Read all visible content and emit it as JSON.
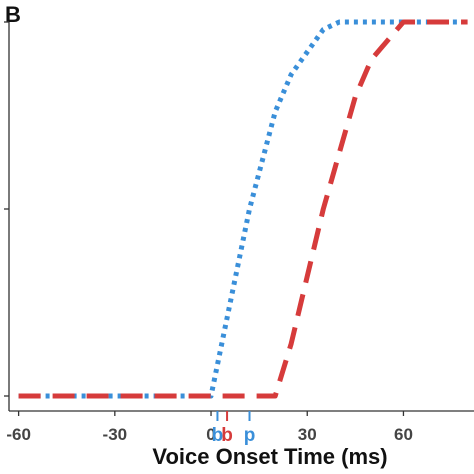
{
  "panel_label": "B",
  "chart_data": {
    "type": "line",
    "title": "",
    "xlabel": "Voice Onset Time (ms)",
    "ylabel": "",
    "xlim": [
      -63,
      82
    ],
    "ylim": [
      0,
      1
    ],
    "x_ticks": [
      -60,
      -30,
      0,
      30,
      60
    ],
    "y_ticks": [
      0,
      0.5,
      1
    ],
    "show_y_tick_labels": false,
    "grid": false,
    "legend": "none",
    "series": [
      {
        "color": "#3a8fd9",
        "style": "dotted",
        "x": [
          -60,
          0,
          12,
          20,
          25,
          35,
          40,
          80
        ],
        "y": [
          0,
          0,
          0.5,
          0.76,
          0.86,
          0.98,
          1,
          1
        ]
      },
      {
        "color": "#d63b3b",
        "style": "dashed",
        "x": [
          -60,
          20,
          25,
          35,
          45,
          50,
          60,
          80
        ],
        "y": [
          0,
          0,
          0.14,
          0.5,
          0.8,
          0.9,
          1,
          1
        ]
      }
    ],
    "markers": [
      {
        "label": "b",
        "x": 2,
        "color": "#3a8fd9"
      },
      {
        "label": "b",
        "x": 5,
        "color": "#d63b3b"
      },
      {
        "label": "p",
        "x": 12,
        "color": "#3a8fd9"
      }
    ]
  }
}
